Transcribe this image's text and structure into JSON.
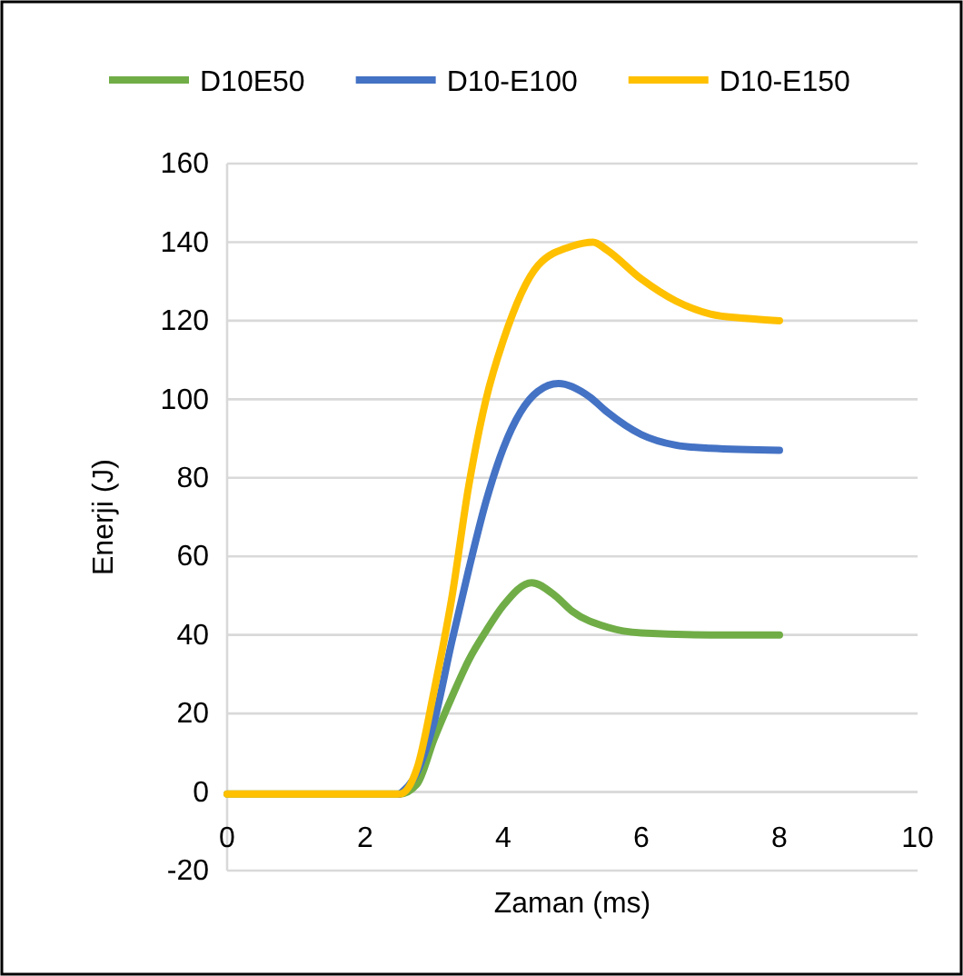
{
  "chart_data": {
    "type": "line",
    "xlabel": "Zaman (ms)",
    "ylabel": "Enerji (J)",
    "xlim": [
      0,
      10
    ],
    "xticks": [
      0,
      2,
      4,
      6,
      8,
      10
    ],
    "ylim": [
      -20,
      160
    ],
    "yticks": [
      -20,
      0,
      20,
      40,
      60,
      80,
      100,
      120,
      140,
      160
    ],
    "grid": "y",
    "legend": "top",
    "marker": "none",
    "line_style": "solid",
    "series": [
      {
        "name": "D10E50",
        "color": "#70ad47",
        "x": [
          0,
          1,
          2,
          2.5,
          2.75,
          3,
          3.25,
          3.5,
          3.75,
          4,
          4.41,
          4.75,
          5,
          5.5,
          6,
          7,
          8
        ],
        "values": [
          -0.5,
          -0.5,
          -0.5,
          -0.5,
          2,
          13.6,
          24,
          33.6,
          41,
          47.5,
          53.3,
          50,
          46,
          42,
          40.5,
          40,
          40
        ]
      },
      {
        "name": "D10-E100",
        "color": "#4472c4",
        "x": [
          2.5,
          2.75,
          3,
          3.25,
          3.5,
          3.75,
          4,
          4.5,
          4.8,
          5.25,
          5.5,
          6,
          6.5,
          7,
          8
        ],
        "values": [
          -0.5,
          5,
          18,
          38,
          56.7,
          74,
          87.5,
          102,
          104,
          100.6,
          96.8,
          91,
          88.3,
          87.5,
          87
        ]
      },
      {
        "name": "D10-E150",
        "color": "#ffc000",
        "x": [
          0,
          1,
          2,
          2.5,
          2.75,
          3,
          3.25,
          3.5,
          3.75,
          4,
          4.5,
          5,
          5.3,
          5.5,
          6,
          6.5,
          7,
          7.5,
          8
        ],
        "values": [
          -0.5,
          -0.5,
          -0.5,
          -0.5,
          6,
          26,
          49,
          78,
          100,
          115,
          134,
          139,
          140,
          138,
          130.6,
          125,
          121.7,
          120.6,
          120
        ]
      }
    ]
  }
}
